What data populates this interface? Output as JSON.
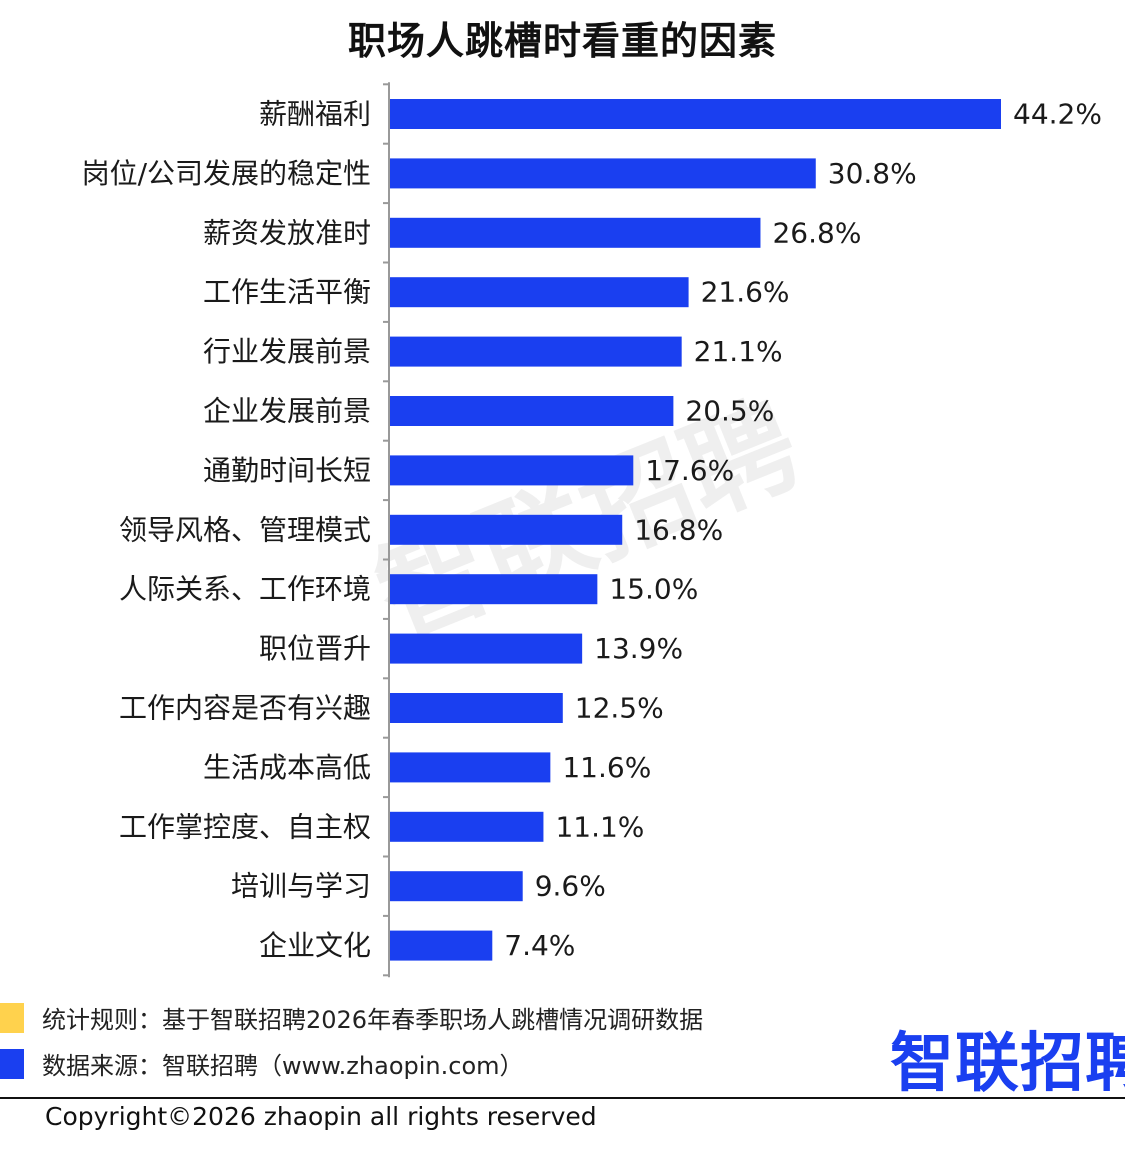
{
  "chart_data": {
    "type": "bar",
    "orientation": "horizontal",
    "title": "职场人跳槽时看重的因素",
    "categories": [
      "薪酬福利",
      "岗位/公司发展的稳定性",
      "薪资发放准时",
      "工作生活平衡",
      "行业发展前景",
      "企业发展前景",
      "通勤时间长短",
      "领导风格、管理模式",
      "人际关系、工作环境",
      "职位晋升",
      "工作内容是否有兴趣",
      "生活成本高低",
      "工作掌控度、自主权",
      "培训与学习",
      "企业文化"
    ],
    "values": [
      44.2,
      30.8,
      26.8,
      21.6,
      21.1,
      20.5,
      17.6,
      16.8,
      15.0,
      13.9,
      12.5,
      11.6,
      11.1,
      9.6,
      7.4
    ],
    "value_labels": [
      "44.2%",
      "30.8%",
      "26.8%",
      "21.6%",
      "21.1%",
      "20.5%",
      "17.6%",
      "16.8%",
      "15.0%",
      "13.9%",
      "12.5%",
      "11.6%",
      "11.1%",
      "9.6%",
      "7.4%"
    ],
    "unit": "%",
    "xlim": [
      0,
      44.2
    ],
    "bar_color": "#1a3ff0",
    "axis_color": "#999999",
    "grid": false
  },
  "watermark": "智联招聘",
  "legend": [
    {
      "text": "统计规则：基于智联招聘2026年春季职场人跳槽情况调研数据",
      "color": "#ffd24d"
    },
    {
      "text": "数据来源：智联招聘（www.zhaopin.com）",
      "color": "#1a3ff0"
    }
  ],
  "brand": {
    "text": "智联招聘",
    "color": "#1a3ff0",
    "accent_color": "#ffc928"
  },
  "copyright": "Copyright©2026 zhaopin all rights reserved"
}
